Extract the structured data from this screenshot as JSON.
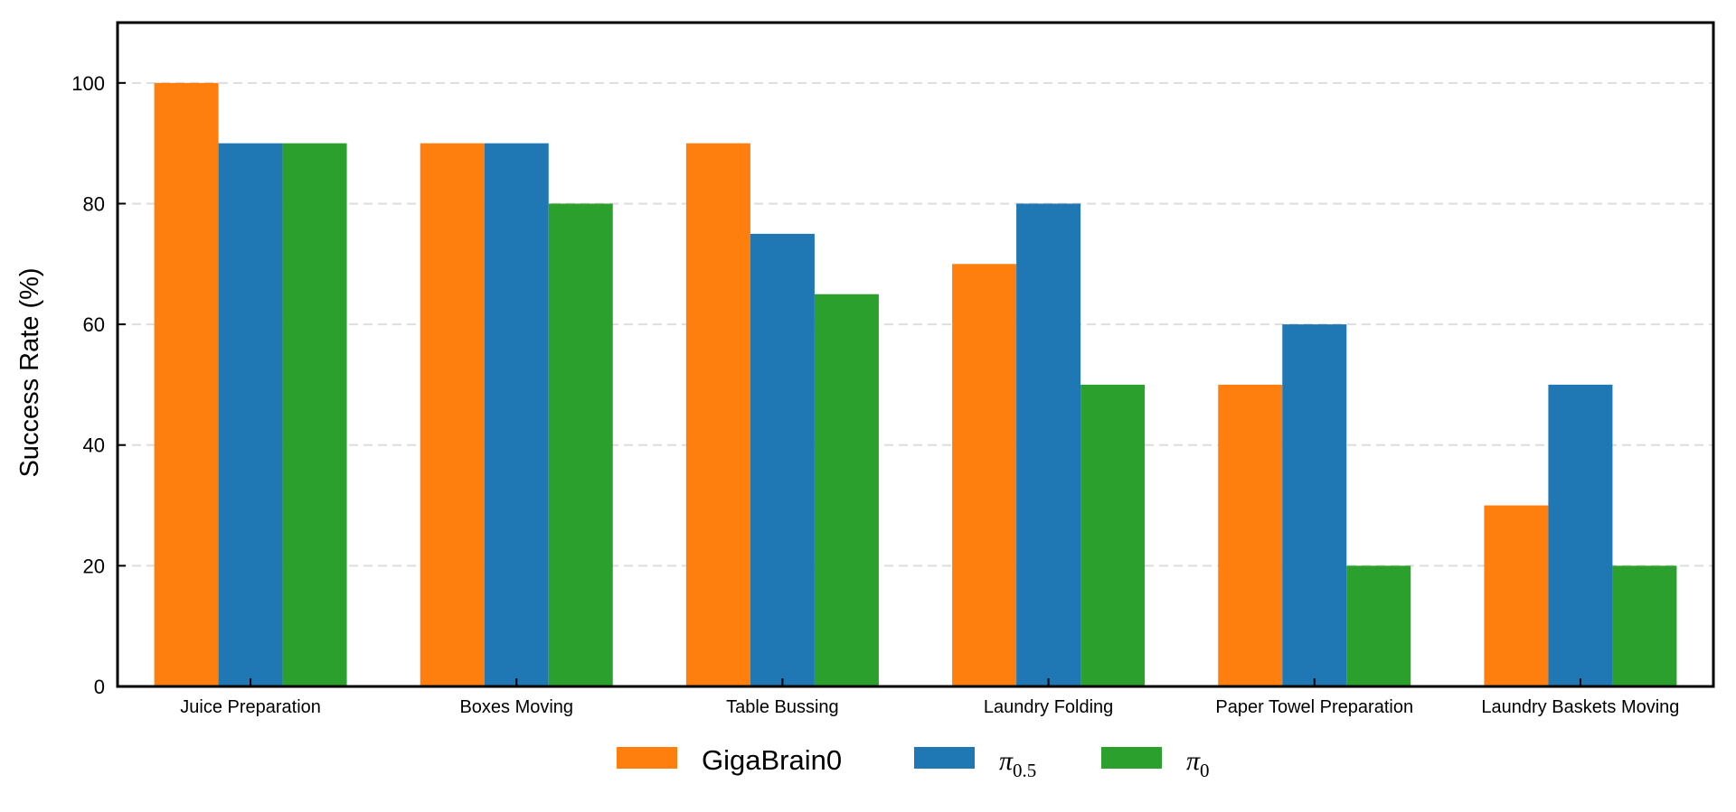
{
  "chart_data": {
    "type": "bar",
    "title": "",
    "xlabel": "",
    "ylabel": "Success Rate (%)",
    "ylim": [
      0,
      110
    ],
    "yticks": [
      "0",
      "20",
      "40",
      "60",
      "80",
      "100"
    ],
    "grid": "horizontal-dashed",
    "legend_position": "bottom-center",
    "categories": [
      "Juice Preparation",
      "Boxes Moving",
      "Table Bussing",
      "Laundry Folding",
      "Paper Towel Preparation",
      "Laundry Baskets Moving"
    ],
    "series": [
      {
        "name": "GigaBrain0",
        "color": "#ff7f0e",
        "values": [
          100,
          90,
          90,
          70,
          50,
          30
        ]
      },
      {
        "name": "π0.5",
        "symbol": "π",
        "subscript": "0.5",
        "color": "#1f77b4",
        "values": [
          90,
          90,
          75,
          80,
          60,
          50
        ]
      },
      {
        "name": "π0",
        "symbol": "π",
        "subscript": "0",
        "color": "#2ca02c",
        "values": [
          90,
          80,
          65,
          50,
          20,
          20
        ]
      }
    ]
  }
}
